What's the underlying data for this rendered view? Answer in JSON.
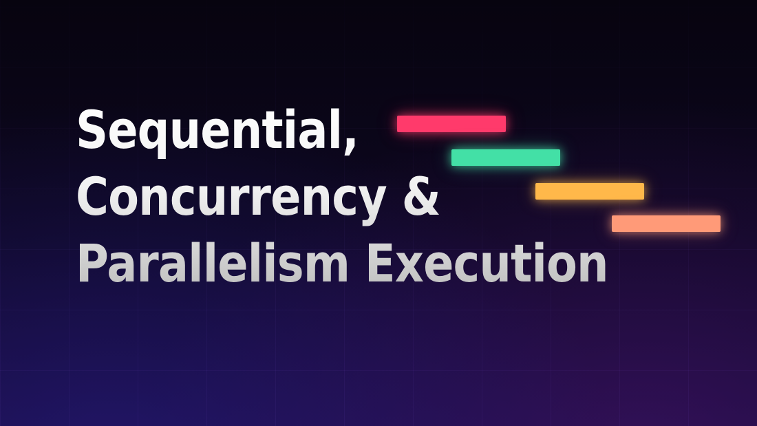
{
  "title": {
    "lines": [
      "Sequential,",
      "Concurrency &",
      "Parallelism Execution"
    ]
  },
  "timeline_bars": [
    {
      "color": "#ff3a6b"
    },
    {
      "color": "#43e0a6"
    },
    {
      "color": "#ffb84a"
    },
    {
      "color": "#ff9a78"
    }
  ]
}
